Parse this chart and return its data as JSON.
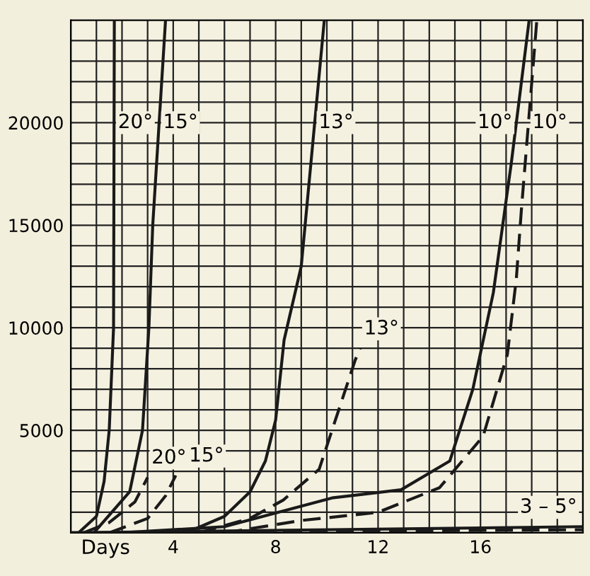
{
  "chart_data": {
    "type": "line",
    "xlabel": "Days",
    "xlim": [
      0,
      20
    ],
    "ylim": [
      0,
      25000
    ],
    "xticks": [
      {
        "value": 0,
        "label": null
      },
      {
        "value": 1,
        "label": null
      },
      {
        "value": 2,
        "label": null
      },
      {
        "value": 3,
        "label": null
      },
      4,
      {
        "value": 5,
        "label": null
      },
      {
        "value": 6,
        "label": null
      },
      {
        "value": 7,
        "label": null
      },
      8,
      {
        "value": 9,
        "label": null
      },
      {
        "value": 10,
        "label": null
      },
      {
        "value": 11,
        "label": null
      },
      12,
      {
        "value": 13,
        "label": null
      },
      {
        "value": 14,
        "label": null
      },
      {
        "value": 15,
        "label": null
      },
      16,
      {
        "value": 17,
        "label": null
      },
      {
        "value": 18,
        "label": null
      },
      {
        "value": 19,
        "label": null
      },
      {
        "value": 20,
        "label": null
      }
    ],
    "yticks": [
      {
        "value": 0,
        "label": null
      },
      {
        "value": 1000,
        "label": null
      },
      {
        "value": 2000,
        "label": null
      },
      {
        "value": 3000,
        "label": null
      },
      {
        "value": 4000,
        "label": null
      },
      5000,
      {
        "value": 6000,
        "label": null
      },
      {
        "value": 7000,
        "label": null
      },
      {
        "value": 8000,
        "label": null
      },
      {
        "value": 9000,
        "label": null
      },
      10000,
      {
        "value": 11000,
        "label": null
      },
      {
        "value": 12000,
        "label": null
      },
      {
        "value": 13000,
        "label": null
      },
      {
        "value": 14000,
        "label": null
      },
      15000,
      {
        "value": 16000,
        "label": null
      },
      {
        "value": 17000,
        "label": null
      },
      {
        "value": 18000,
        "label": null
      },
      {
        "value": 19000,
        "label": null
      },
      20000,
      {
        "value": 21000,
        "label": null
      },
      {
        "value": 22000,
        "label": null
      },
      {
        "value": 23000,
        "label": null
      },
      {
        "value": 24000,
        "label": null
      },
      {
        "value": 25000,
        "label": null
      }
    ],
    "grid": true,
    "marker": "none",
    "series": [
      {
        "name": "20°",
        "color": "#1a1a1a",
        "line_style": "solid",
        "x": [
          0.3,
          1,
          1.3,
          1.5,
          1.67,
          1.7
        ],
        "values": [
          0,
          800,
          2500,
          5000,
          10000,
          25000
        ]
      },
      {
        "name": "20°",
        "color": "#1a1a1a",
        "line_style": "dashed",
        "x": [
          0.5,
          1.5,
          2.5,
          3
        ],
        "values": [
          0,
          500,
          1500,
          2700
        ]
      },
      {
        "name": "15°",
        "color": "#1a1a1a",
        "line_style": "solid",
        "x": [
          0.9,
          2.3,
          2.8,
          3.05,
          3.2,
          3.7
        ],
        "values": [
          0,
          2000,
          5000,
          10000,
          15000,
          25000
        ]
      },
      {
        "name": "15°",
        "color": "#1a1a1a",
        "line_style": "dashed",
        "x": [
          1.5,
          3,
          3.7,
          4.1
        ],
        "values": [
          0,
          700,
          1800,
          2800
        ]
      },
      {
        "name": "13°",
        "color": "#1a1a1a",
        "line_style": "solid",
        "x": [
          4.5,
          6,
          7,
          7.6,
          8,
          8.33,
          9,
          9.9
        ],
        "values": [
          0,
          800,
          2000,
          3500,
          5500,
          9400,
          13000,
          25000
        ]
      },
      {
        "name": "13°",
        "color": "#1a1a1a",
        "line_style": "dashed",
        "x": [
          5,
          7,
          8.3,
          9.7,
          11.1,
          11.3
        ],
        "values": [
          0,
          700,
          1600,
          3100,
          8400,
          9000
        ]
      },
      {
        "name": "10°",
        "color": "#1a1a1a",
        "line_style": "solid",
        "x": [
          2,
          6,
          10.2,
          12.9,
          14.8,
          15.7,
          16.5,
          17.2,
          17.9
        ],
        "values": [
          0,
          300,
          1700,
          2100,
          3500,
          7000,
          11700,
          18000,
          25000
        ]
      },
      {
        "name": "10°",
        "color": "#1a1a1a",
        "line_style": "dashed",
        "x": [
          6,
          9,
          12,
          14.4,
          16.1,
          17.05,
          17.4,
          17.6,
          18.2
        ],
        "values": [
          0,
          600,
          1000,
          2200,
          4700,
          8700,
          12400,
          15800,
          25000
        ]
      },
      {
        "name": "3 – 5°",
        "color": "#1a1a1a",
        "line_style": "solid",
        "x": [
          0,
          20
        ],
        "values": [
          0,
          300
        ]
      },
      {
        "color": "#1a1a1a",
        "line_style": "dashed",
        "x": [
          0,
          20
        ],
        "values": [
          0,
          150
        ]
      }
    ]
  }
}
